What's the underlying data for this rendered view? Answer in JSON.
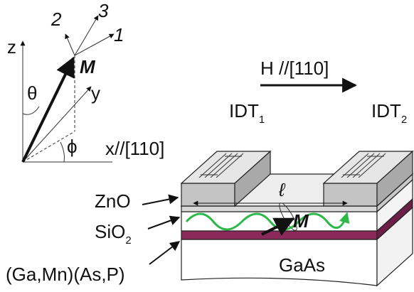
{
  "axes": {
    "z": "z",
    "y": "y",
    "x": "x//[110]",
    "theta": "θ",
    "phi": "ϕ",
    "magnetization": "M",
    "directions": [
      "1",
      "2",
      "3"
    ]
  },
  "device": {
    "field": "H //[110]",
    "idt1": {
      "text": "IDT",
      "sub": "1"
    },
    "idt2": {
      "text": "IDT",
      "sub": "2"
    },
    "length": "ℓ",
    "magnetization": "M",
    "substrate": "GaAs"
  },
  "layers": [
    {
      "text": "ZnO"
    },
    {
      "text": "SiO",
      "sub": "2"
    },
    {
      "text": "(Ga,Mn)(As,P)"
    }
  ]
}
